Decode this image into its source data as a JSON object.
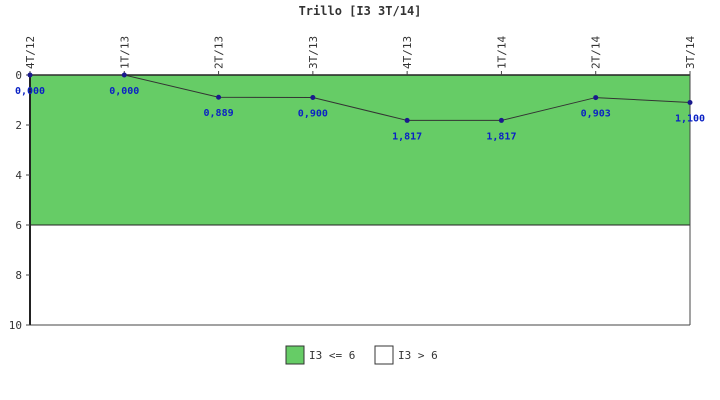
{
  "chart_data": {
    "type": "line",
    "title": "Trillo [I3 3T/14]",
    "xlabel": "",
    "ylabel": "",
    "categories": [
      "4T/12",
      "1T/13",
      "2T/13",
      "3T/13",
      "4T/13",
      "1T/14",
      "2T/14",
      "3T/14"
    ],
    "series": [
      {
        "values": [
          0.0,
          0.0,
          0.889,
          0.9,
          1.817,
          1.817,
          0.903,
          1.1
        ],
        "labels": [
          "0,000",
          "0,000",
          "0,889",
          "0,900",
          "1,817",
          "1,817",
          "0,903",
          "1,100"
        ],
        "color": "#1a1a8c"
      }
    ],
    "ylim": [
      10,
      0
    ],
    "y_inverted": true,
    "yticks": [
      "0",
      "2",
      "4",
      "6",
      "8",
      "10"
    ],
    "ytick_values": [
      0,
      2,
      4,
      6,
      8,
      10
    ],
    "threshold": 6,
    "bands": [
      {
        "name": "I3 <= 6",
        "from": 0,
        "to": 6,
        "color": "#66cc66"
      },
      {
        "name": "I3 > 6",
        "from": 6,
        "to": 10,
        "color": "#ffffff"
      }
    ],
    "legend_position": "bottom-center",
    "grid": false,
    "data_label_color": "#0b22c4"
  }
}
